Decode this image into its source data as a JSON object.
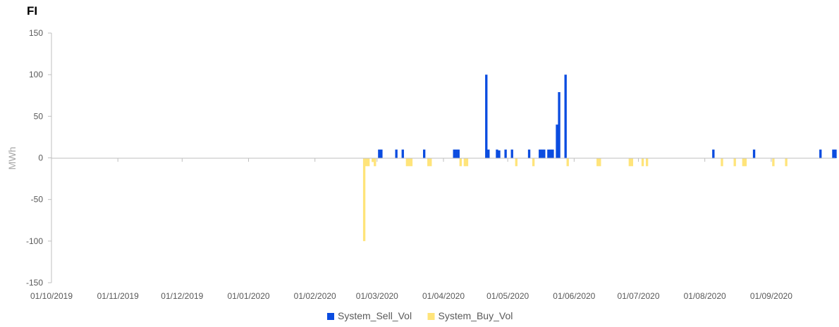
{
  "title": "FI",
  "chart_data": {
    "type": "bar",
    "title": "FI",
    "ylabel": "MWh",
    "xlabel": "",
    "ylim": [
      -150,
      150
    ],
    "yticks": [
      150,
      100,
      50,
      0,
      -50,
      -100,
      -150
    ],
    "xrange": [
      "2019-10-01",
      "2020-09-30"
    ],
    "xticks": [
      "01/10/2019",
      "01/11/2019",
      "01/12/2019",
      "01/01/2020",
      "01/02/2020",
      "01/03/2020",
      "01/04/2020",
      "01/05/2020",
      "01/06/2020",
      "01/07/2020",
      "01/08/2020",
      "01/09/2020"
    ],
    "legend_position": "bottom",
    "series": [
      {
        "name": "System_Sell_Vol",
        "color": "#0b4ce0",
        "points": [
          {
            "date": "2020-03-02",
            "value": 10
          },
          {
            "date": "2020-03-03",
            "value": 10
          },
          {
            "date": "2020-03-10",
            "value": 10
          },
          {
            "date": "2020-03-13",
            "value": 10
          },
          {
            "date": "2020-03-23",
            "value": 10
          },
          {
            "date": "2020-04-06",
            "value": 10
          },
          {
            "date": "2020-04-07",
            "value": 10
          },
          {
            "date": "2020-04-08",
            "value": 10
          },
          {
            "date": "2020-04-21",
            "value": 100
          },
          {
            "date": "2020-04-22",
            "value": 10
          },
          {
            "date": "2020-04-26",
            "value": 10
          },
          {
            "date": "2020-04-27",
            "value": 9
          },
          {
            "date": "2020-04-30",
            "value": 10
          },
          {
            "date": "2020-05-03",
            "value": 10
          },
          {
            "date": "2020-05-11",
            "value": 10
          },
          {
            "date": "2020-05-16",
            "value": 10
          },
          {
            "date": "2020-05-17",
            "value": 10
          },
          {
            "date": "2020-05-18",
            "value": 10
          },
          {
            "date": "2020-05-20",
            "value": 10
          },
          {
            "date": "2020-05-21",
            "value": 10
          },
          {
            "date": "2020-05-22",
            "value": 10
          },
          {
            "date": "2020-05-24",
            "value": 40
          },
          {
            "date": "2020-05-25",
            "value": 79
          },
          {
            "date": "2020-05-28",
            "value": 100
          },
          {
            "date": "2020-08-05",
            "value": 10
          },
          {
            "date": "2020-08-24",
            "value": 10
          },
          {
            "date": "2020-09-24",
            "value": 10
          },
          {
            "date": "2020-09-30",
            "value": 10
          },
          {
            "date": "2020-10-01",
            "value": 10
          }
        ]
      },
      {
        "name": "System_Buy_Vol",
        "color": "#ffe47a",
        "points": [
          {
            "date": "2020-02-24",
            "value": -100
          },
          {
            "date": "2020-02-25",
            "value": -10
          },
          {
            "date": "2020-02-26",
            "value": -10
          },
          {
            "date": "2020-02-28",
            "value": -5
          },
          {
            "date": "2020-02-29",
            "value": -10
          },
          {
            "date": "2020-03-15",
            "value": -10
          },
          {
            "date": "2020-03-16",
            "value": -10
          },
          {
            "date": "2020-03-17",
            "value": -10
          },
          {
            "date": "2020-03-25",
            "value": -10
          },
          {
            "date": "2020-03-26",
            "value": -10
          },
          {
            "date": "2020-04-09",
            "value": -10
          },
          {
            "date": "2020-04-11",
            "value": -10
          },
          {
            "date": "2020-04-12",
            "value": -10
          },
          {
            "date": "2020-05-05",
            "value": -10
          },
          {
            "date": "2020-05-13",
            "value": -10
          },
          {
            "date": "2020-05-29",
            "value": -10
          },
          {
            "date": "2020-06-12",
            "value": -10
          },
          {
            "date": "2020-06-13",
            "value": -10
          },
          {
            "date": "2020-06-27",
            "value": -10
          },
          {
            "date": "2020-06-28",
            "value": -10
          },
          {
            "date": "2020-07-03",
            "value": -10
          },
          {
            "date": "2020-07-05",
            "value": -10
          },
          {
            "date": "2020-08-09",
            "value": -10
          },
          {
            "date": "2020-08-15",
            "value": -10
          },
          {
            "date": "2020-08-19",
            "value": -10
          },
          {
            "date": "2020-08-20",
            "value": -10
          },
          {
            "date": "2020-09-02",
            "value": -10
          },
          {
            "date": "2020-09-08",
            "value": -10
          }
        ]
      }
    ]
  }
}
